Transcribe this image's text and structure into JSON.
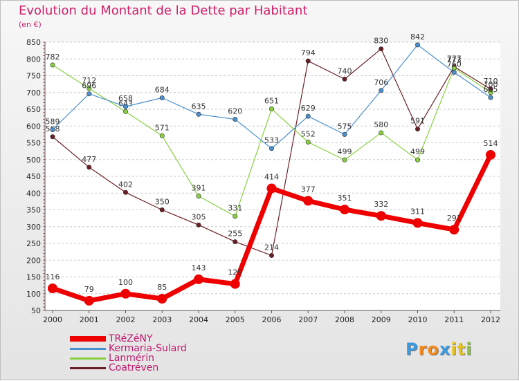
{
  "title": "Evolution du Montant de la Dette par Habitant",
  "subtitle": "(en €)",
  "logo": {
    "text": "Proxiti",
    "letter_colors": [
      "#3a9be0",
      "#f08a1c",
      "#f08a1c",
      "#3a9be0",
      "#e8c31a",
      "#e8c31a",
      "#8cc43c"
    ]
  },
  "chart_data": {
    "type": "line",
    "title": "Evolution du Montant de la Dette par Habitant",
    "subtitle": "(en €)",
    "xlabel": "",
    "ylabel": "",
    "x": [
      "2000",
      "2001",
      "2002",
      "2003",
      "2004",
      "2005",
      "2006",
      "2007",
      "2008",
      "2009",
      "2010",
      "2011",
      "2012"
    ],
    "ylim": [
      50,
      850
    ],
    "yticks": [
      50,
      100,
      150,
      200,
      250,
      300,
      350,
      400,
      450,
      500,
      550,
      600,
      650,
      700,
      750,
      800,
      850
    ],
    "grid": "y dashed",
    "legend_position": "bottom-left",
    "series": [
      {
        "name": "Coatréven",
        "color": "#6b1f24",
        "values": [
          568,
          477,
          402,
          350,
          305,
          255,
          214,
          794,
          740,
          830,
          591,
          777,
          710
        ],
        "labels": [
          "568",
          "477",
          "402",
          "350",
          "305",
          "255",
          "214",
          "794",
          "740",
          "830",
          "591",
          "777",
          "710"
        ]
      },
      {
        "name": "Lanmérin",
        "color": "#88d040",
        "values": [
          782,
          712,
          643,
          571,
          391,
          331,
          651,
          552,
          499,
          580,
          499,
          773,
          700
        ],
        "labels": [
          "782",
          "712",
          "643",
          "571",
          "391",
          "331",
          "651",
          "552",
          "499",
          "580",
          "499",
          "773",
          "700"
        ]
      },
      {
        "name": "Kermaria-Sulard",
        "color": "#4a90d0",
        "values": [
          589,
          696,
          658,
          684,
          635,
          620,
          533,
          629,
          575,
          706,
          842,
          760,
          685
        ],
        "labels": [
          "589",
          "696",
          "658",
          "684",
          "635",
          "620",
          "533",
          "629",
          "575",
          "706",
          "842",
          "760",
          "685"
        ]
      },
      {
        "name": "TRéZéNY",
        "color": "#ee0000",
        "values": [
          116,
          79,
          100,
          85,
          143,
          129,
          414,
          377,
          351,
          332,
          311,
          291,
          514
        ],
        "labels": [
          "116",
          "79",
          "100",
          "85",
          "143",
          "129",
          "414",
          "377",
          "351",
          "332",
          "311",
          "291",
          "514"
        ]
      }
    ],
    "legend": [
      {
        "name": "TRéZéNY",
        "color": "#ee0000"
      },
      {
        "name": "Kermaria-Sulard",
        "color": "#4a90d0"
      },
      {
        "name": "Lanmérin",
        "color": "#88d040"
      },
      {
        "name": "Coatréven",
        "color": "#6b1f24"
      }
    ]
  }
}
